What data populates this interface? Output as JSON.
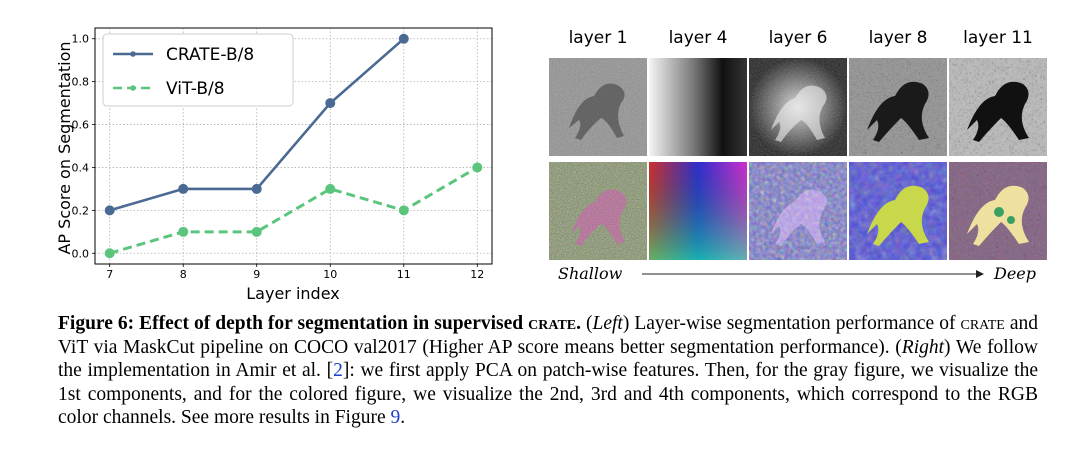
{
  "chart_data": {
    "type": "line",
    "x": [
      7,
      8,
      9,
      10,
      11,
      12
    ],
    "xlabel": "Layer index",
    "ylabel": "AP Score on Segmentation",
    "ylim": [
      0.0,
      1.0
    ],
    "yticks": [
      "0.0",
      "0.2",
      "0.4",
      "0.6",
      "0.8",
      "1.0"
    ],
    "xticks": [
      "7",
      "8",
      "9",
      "10",
      "11",
      "12"
    ],
    "grid": true,
    "legend_position": "top-left",
    "series": [
      {
        "name": "CRATE-B/8",
        "x": [
          7,
          8,
          9,
          10,
          11
        ],
        "values": [
          0.2,
          0.3,
          0.3,
          0.7,
          1.0
        ],
        "color": "#4a6a94",
        "style": "solid"
      },
      {
        "name": "ViT-B/8",
        "x": [
          7,
          8,
          9,
          10,
          11,
          12
        ],
        "values": [
          0.0,
          0.1,
          0.1,
          0.3,
          0.2,
          0.4
        ],
        "color": "#5cc57d",
        "style": "dashed"
      }
    ]
  },
  "figure": {
    "layers": [
      "layer 1",
      "layer 4",
      "layer 6",
      "layer 8",
      "layer 11"
    ],
    "shallow_label": "Shallow",
    "deep_label": "Deep"
  },
  "caption": {
    "fig_label": "Figure 6: Effect of depth for segmentation in supervised ",
    "fig_crate": "crate",
    "fig_dot": ".",
    "p1": " (",
    "left": "Left",
    "p2": ") Layer-wise segmentation performance of ",
    "crate2": "crate",
    "p3": " and ViT via MaskCut pipeline on COCO val2017 (Higher AP score means better segmentation performance). (",
    "right": "Right",
    "p4": ") We follow the implementation in Amir et al. [",
    "cite1": "2",
    "p5": "]: we first apply PCA on patch-wise features. Then, for the gray figure, we visualize the 1st components, and for the colored figure, we visualize the 2nd, 3rd and 4th components, which correspond to the RGB color channels. See more results in Figure ",
    "cite2": "9",
    "p6": "."
  }
}
